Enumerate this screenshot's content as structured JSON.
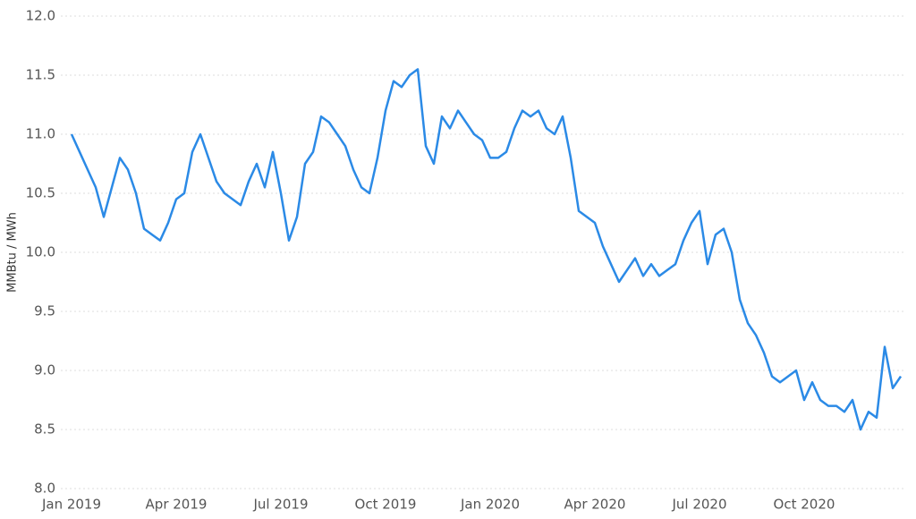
{
  "chart_data": {
    "type": "line",
    "y_label": "MMBtu / MWh",
    "categories": [
      "Jan 2019",
      null,
      null,
      null,
      null,
      null,
      null,
      null,
      null,
      null,
      null,
      null,
      null,
      "Apr 2019",
      null,
      null,
      null,
      null,
      null,
      null,
      null,
      null,
      null,
      null,
      null,
      null,
      "Jul 2019",
      null,
      null,
      null,
      null,
      null,
      null,
      null,
      null,
      null,
      null,
      null,
      null,
      "Oct 2019",
      null,
      null,
      null,
      null,
      null,
      null,
      null,
      null,
      null,
      null,
      null,
      null,
      "Jan 2020",
      null,
      null,
      null,
      null,
      null,
      null,
      null,
      null,
      null,
      null,
      null,
      null,
      "Apr 2020",
      null,
      null,
      null,
      null,
      null,
      null,
      null,
      null,
      null,
      null,
      null,
      null,
      "Jul 2020",
      null,
      null,
      null,
      null,
      null,
      null,
      null,
      null,
      null,
      null,
      null,
      null,
      "Oct 2020",
      null,
      null,
      null,
      null,
      null,
      null,
      null,
      null,
      null,
      null,
      null,
      null
    ],
    "values": [
      11.0,
      10.85,
      10.7,
      10.55,
      10.3,
      10.55,
      10.8,
      10.7,
      10.5,
      10.2,
      10.15,
      10.1,
      10.25,
      10.45,
      10.5,
      10.85,
      11.0,
      10.8,
      10.6,
      10.5,
      10.45,
      10.4,
      10.6,
      10.75,
      10.55,
      10.85,
      10.5,
      10.1,
      10.3,
      10.75,
      10.85,
      11.15,
      11.1,
      11.0,
      10.9,
      10.7,
      10.55,
      10.5,
      10.8,
      11.2,
      11.45,
      11.4,
      11.5,
      11.55,
      10.9,
      10.75,
      11.15,
      11.05,
      11.2,
      11.1,
      11.0,
      10.95,
      10.8,
      10.8,
      10.85,
      11.05,
      11.2,
      11.15,
      11.2,
      11.05,
      11.0,
      11.15,
      10.8,
      10.35,
      10.3,
      10.25,
      10.05,
      9.9,
      9.75,
      9.85,
      9.95,
      9.8,
      9.9,
      9.8,
      9.85,
      9.9,
      10.1,
      10.25,
      10.35,
      9.9,
      10.15,
      10.2,
      10.0,
      9.6,
      9.4,
      9.3,
      9.15,
      8.95,
      8.9,
      8.95,
      9.0,
      8.75,
      8.9,
      8.75,
      8.7,
      8.7,
      8.65,
      8.75,
      8.5,
      8.65,
      8.6,
      9.2,
      8.85,
      8.95
    ],
    "color": "#2b8ae6",
    "ylim": [
      8.0,
      12.0
    ],
    "yticks": [
      {
        "value": 8.0,
        "label": "8.0"
      },
      {
        "value": 8.5,
        "label": "8.5"
      },
      {
        "value": 9.0,
        "label": "9.0"
      },
      {
        "value": 9.5,
        "label": "9.5"
      },
      {
        "value": 10.0,
        "label": "10.0"
      },
      {
        "value": 10.5,
        "label": "10.5"
      },
      {
        "value": 11.0,
        "label": "11.0"
      },
      {
        "value": 11.5,
        "label": "11.5"
      },
      {
        "value": 12.0,
        "label": "12.0"
      }
    ],
    "grid": true
  }
}
